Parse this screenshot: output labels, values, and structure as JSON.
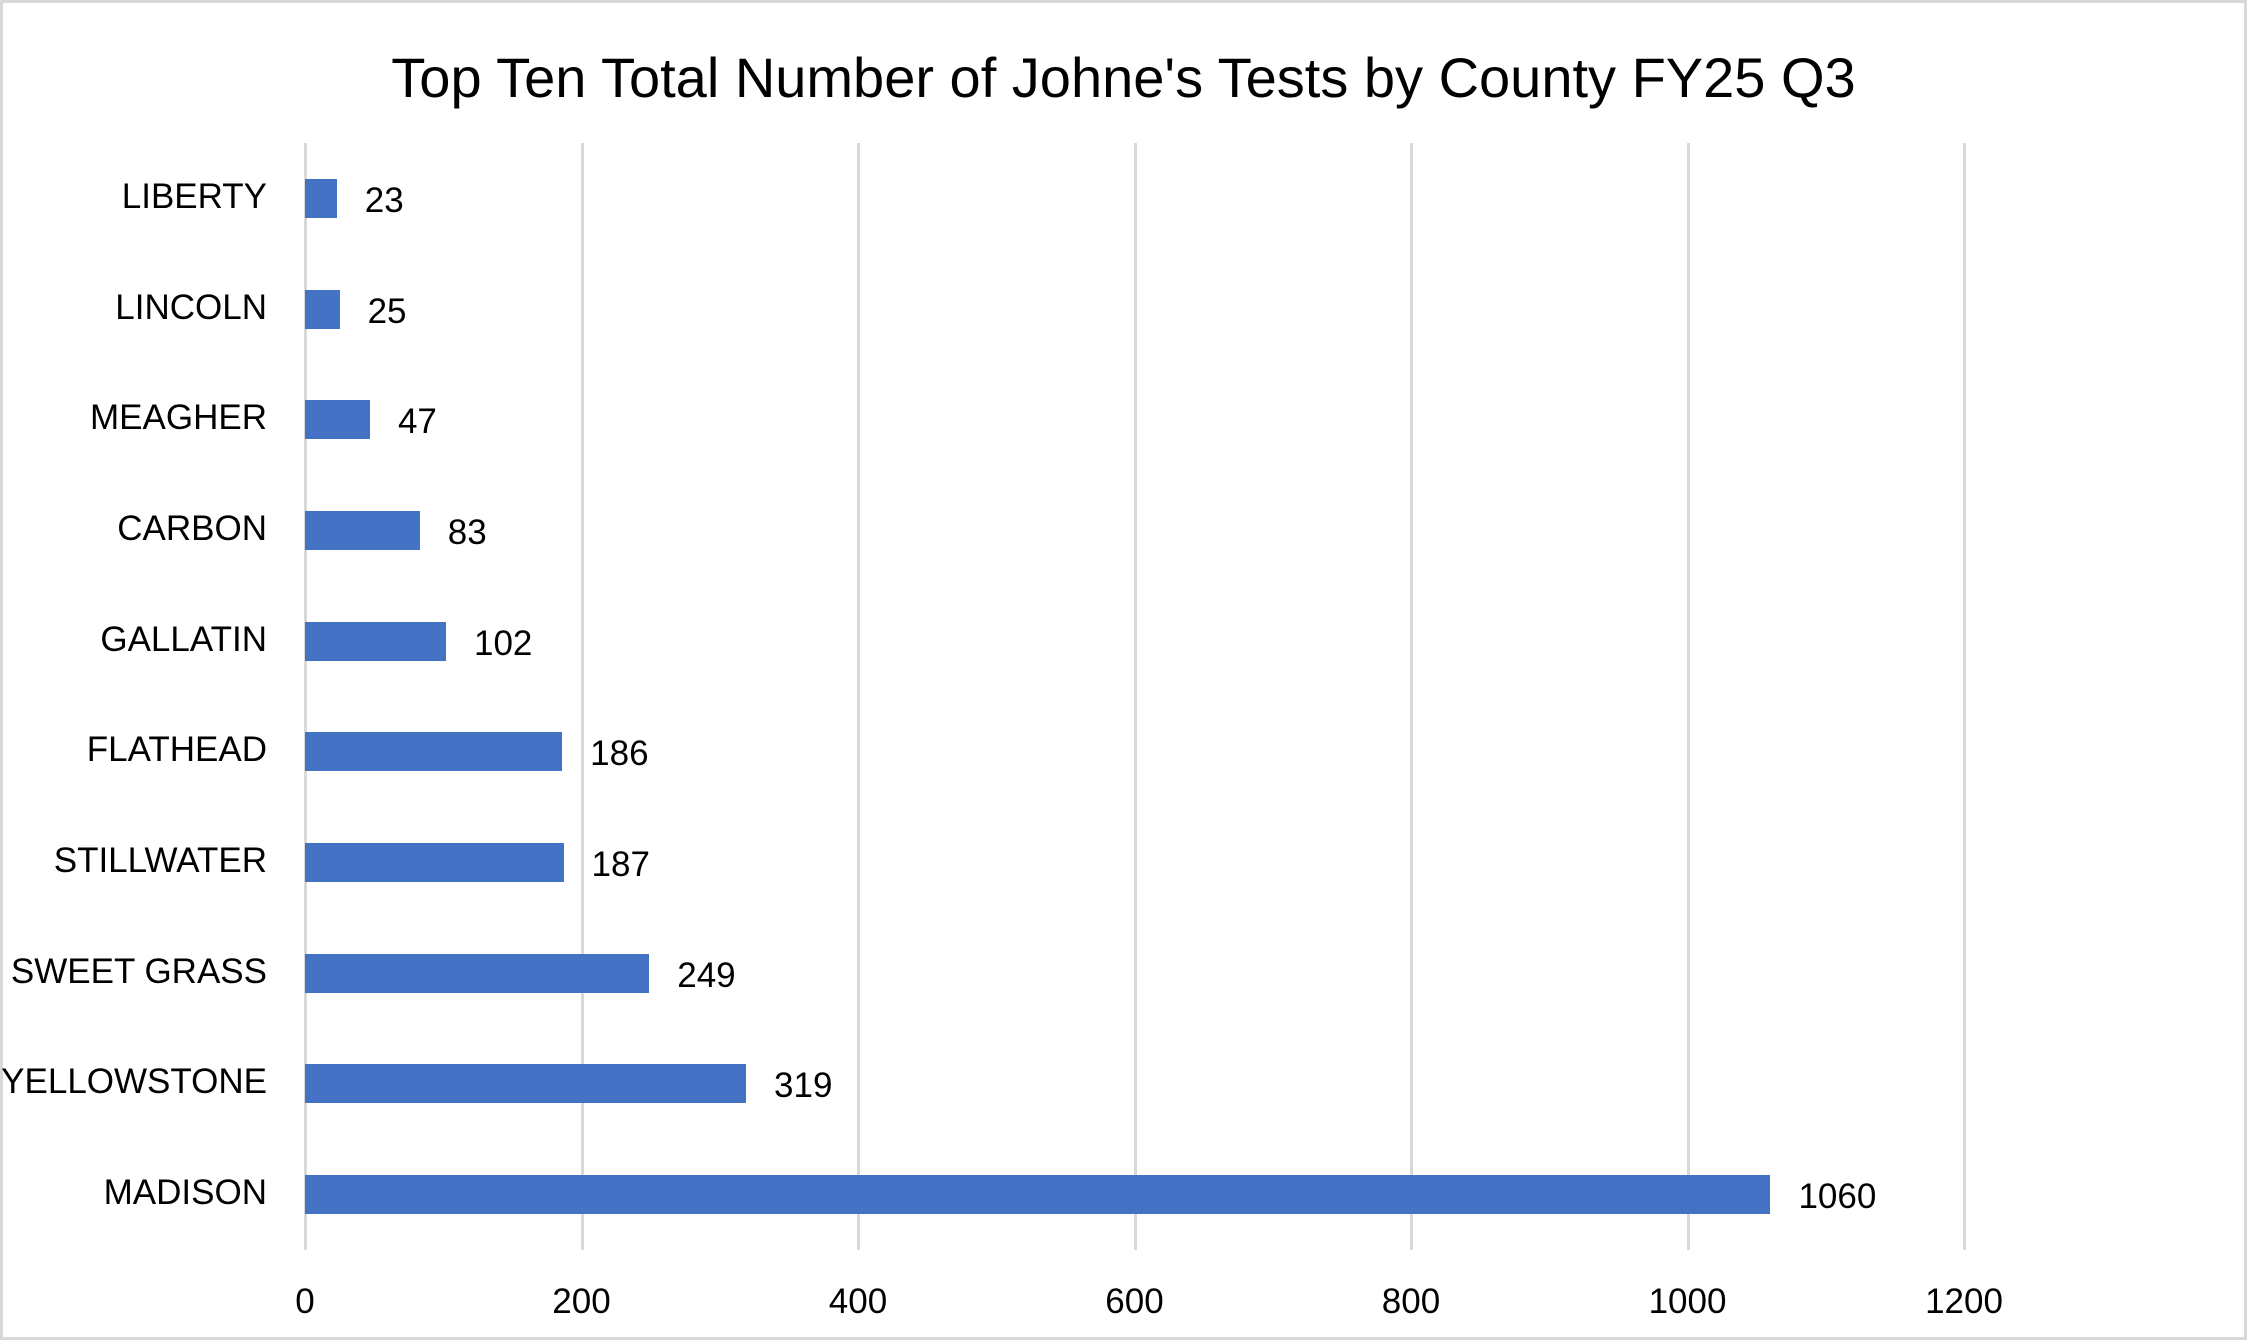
{
  "chart_data": {
    "type": "bar",
    "orientation": "horizontal",
    "title": "Top Ten Total Number of Johne's Tests by County FY25 Q3",
    "xlabel": "",
    "ylabel": "",
    "categories": [
      "LIBERTY",
      "LINCOLN",
      "MEAGHER",
      "CARBON",
      "GALLATIN",
      "FLATHEAD",
      "STILLWATER",
      "SWEET GRASS",
      "YELLOWSTONE",
      "MADISON"
    ],
    "values": [
      23,
      25,
      47,
      83,
      102,
      186,
      187,
      249,
      319,
      1060
    ],
    "xlim": [
      0,
      1200
    ],
    "x_ticks": [
      "0",
      "200",
      "400",
      "600",
      "800",
      "1000",
      "1200"
    ],
    "grid": "vertical",
    "legend": "none",
    "data_labels": true,
    "bar_color": "#4472C4"
  },
  "colors": {
    "bar": "#4472C4",
    "grid": "#d9d9d9",
    "border": "#d9d9d9",
    "text": "#000000"
  }
}
